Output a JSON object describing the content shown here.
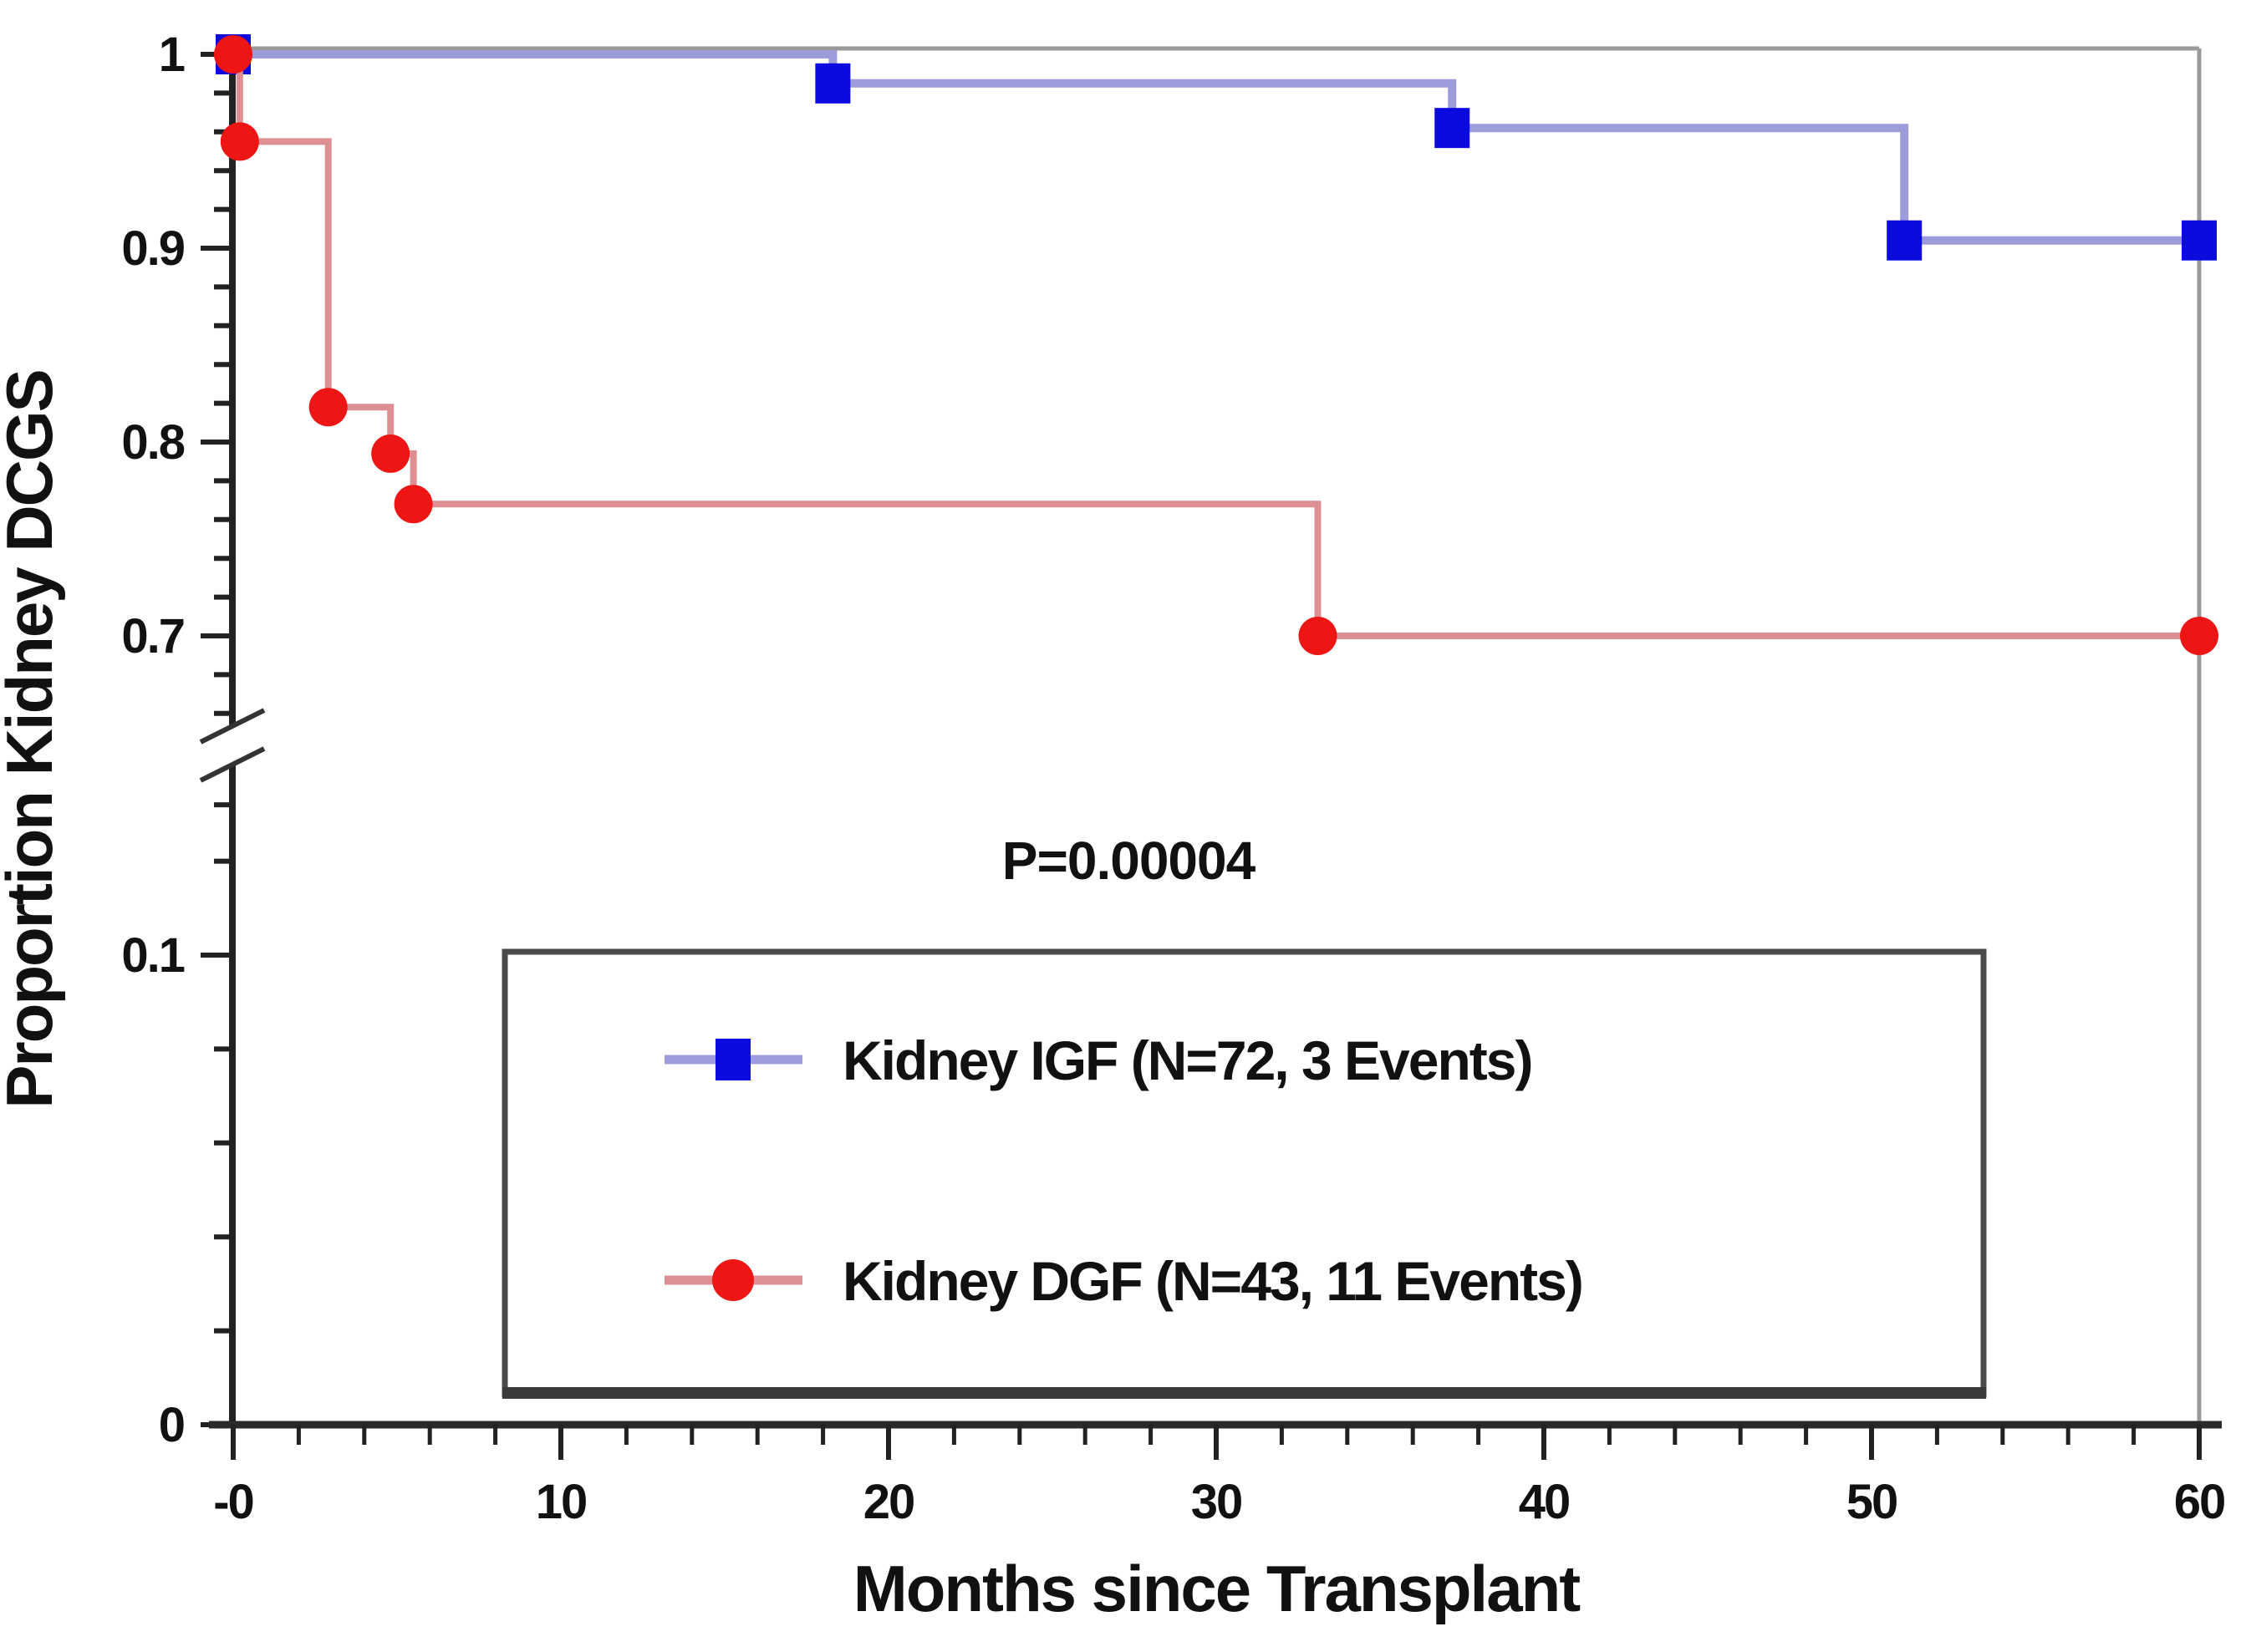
{
  "figure": {
    "background_color": "#ffffff",
    "frame_color": "#999999",
    "axis_color": "#222222"
  },
  "chart_data": {
    "type": "line",
    "subtype": "kaplan-meier-step",
    "title": "",
    "xlabel": "Months since Transplant",
    "ylabel": "Proportion Kidney DCGS",
    "annotation": "P=0.00004",
    "grid": false,
    "legend_position": "lower-center-box",
    "x_axis": {
      "range": [
        0,
        60
      ],
      "major_ticks": [
        0,
        10,
        20,
        30,
        40,
        50,
        60
      ],
      "major_tick_labels": [
        "-0",
        "10",
        "20",
        "30",
        "40",
        "50",
        "60"
      ],
      "minor_tick_step_months": 2
    },
    "y_axis": {
      "broken": true,
      "upper_segment": {
        "range": [
          0.65,
          1.0
        ],
        "major_ticks": [
          {
            "value": 1.0,
            "label": "1"
          },
          {
            "value": 0.9,
            "label": "0.9"
          },
          {
            "value": 0.8,
            "label": "0.8"
          },
          {
            "value": 0.7,
            "label": "0.7"
          }
        ],
        "minor_tick_values": [
          0.98,
          0.96,
          0.94,
          0.92,
          0.88,
          0.86,
          0.84,
          0.82,
          0.78,
          0.76,
          0.74,
          0.72,
          0.68,
          0.66
        ]
      },
      "lower_segment": {
        "range": [
          0,
          0.14
        ],
        "major_ticks": [
          {
            "value": 0.1,
            "label": "0.1"
          },
          {
            "value": 0.0,
            "label": "0"
          }
        ],
        "minor_tick_values": [
          0.132,
          0.12,
          0.08,
          0.06,
          0.04,
          0.02
        ]
      }
    },
    "series": [
      {
        "name": "Kidney IGF (N=72, 3 Events)",
        "group": "IGF",
        "n": 72,
        "events": 3,
        "marker": "square",
        "marker_color": "#0b0bdf",
        "line_color": "#9b9cd9",
        "steps": [
          [
            0,
            1
          ],
          [
            18.3,
            1
          ],
          [
            18.3,
            0.985
          ],
          [
            37.2,
            0.985
          ],
          [
            37.2,
            0.962
          ],
          [
            51,
            0.962
          ],
          [
            51,
            0.904
          ],
          [
            60,
            0.904
          ]
        ],
        "markers": [
          [
            0,
            1
          ],
          [
            18.3,
            0.985
          ],
          [
            37.2,
            0.962
          ],
          [
            51,
            0.904
          ],
          [
            60,
            0.904
          ]
        ]
      },
      {
        "name": "Kidney DGF (N=43, 11 Events)",
        "group": "DGF",
        "n": 43,
        "events": 11,
        "marker": "circle",
        "marker_color": "#ee1515",
        "line_color": "#de8f94",
        "steps": [
          [
            0,
            1
          ],
          [
            0.2,
            1
          ],
          [
            0.2,
            0.955
          ],
          [
            2.9,
            0.955
          ],
          [
            2.9,
            0.818
          ],
          [
            4.8,
            0.818
          ],
          [
            4.8,
            0.794
          ],
          [
            5.5,
            0.794
          ],
          [
            5.5,
            0.768
          ],
          [
            33.1,
            0.768
          ],
          [
            33.1,
            0.7
          ],
          [
            60,
            0.7
          ]
        ],
        "markers": [
          [
            0,
            1
          ],
          [
            0.2,
            0.955
          ],
          [
            2.9,
            0.818
          ],
          [
            4.8,
            0.794
          ],
          [
            5.5,
            0.768
          ],
          [
            33.1,
            0.7
          ],
          [
            60,
            0.7
          ]
        ]
      }
    ],
    "legend": {
      "border_color": "#4a4a4a",
      "entries": [
        {
          "label": "Kidney IGF (N=72, 3 Events)",
          "marker": "square",
          "color": "#0b0bdf",
          "line_color": "#9b9cd9"
        },
        {
          "label": "Kidney DGF (N=43, 11 Events)",
          "marker": "circle",
          "color": "#ee1515",
          "line_color": "#de8f94"
        }
      ]
    }
  }
}
